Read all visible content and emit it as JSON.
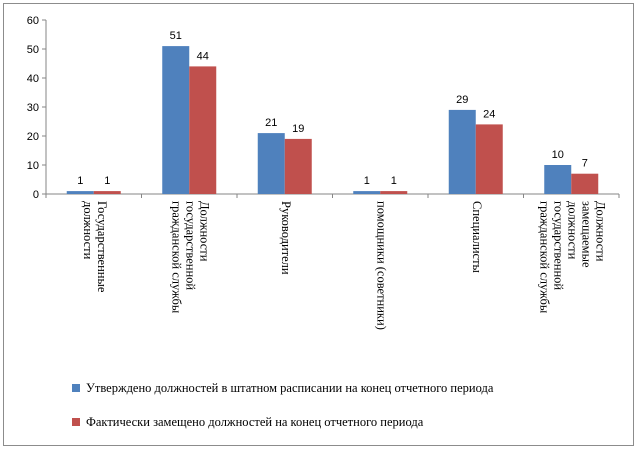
{
  "chart_data": {
    "type": "bar",
    "title": "",
    "xlabel": "",
    "ylabel": "",
    "ylim": [
      0,
      60
    ],
    "yticks": [
      0,
      10,
      20,
      30,
      40,
      50,
      60
    ],
    "grid": false,
    "legend_position": "bottom",
    "categories": [
      [
        [
          "Государственные",
          "должности"
        ]
      ],
      [
        [
          "Должности",
          "государственной",
          "гражданской службы"
        ]
      ],
      [
        [
          "Руководители"
        ]
      ],
      [
        [
          "помощники (советники)"
        ]
      ],
      [
        [
          "Специалисты"
        ]
      ],
      [
        [
          "Должности",
          "замещаемые",
          "должности",
          "государственной",
          "гражданской службы"
        ]
      ]
    ],
    "series": [
      {
        "name": "Утверждено  должностей в штатном расписании на конец отчетного периода",
        "color": "#4F81BD",
        "values": [
          1,
          51,
          21,
          1,
          29,
          10
        ]
      },
      {
        "name": "Фактически замещено должностей на конец отчетного периода",
        "color": "#C0504D",
        "values": [
          1,
          44,
          19,
          1,
          24,
          7
        ]
      }
    ]
  }
}
